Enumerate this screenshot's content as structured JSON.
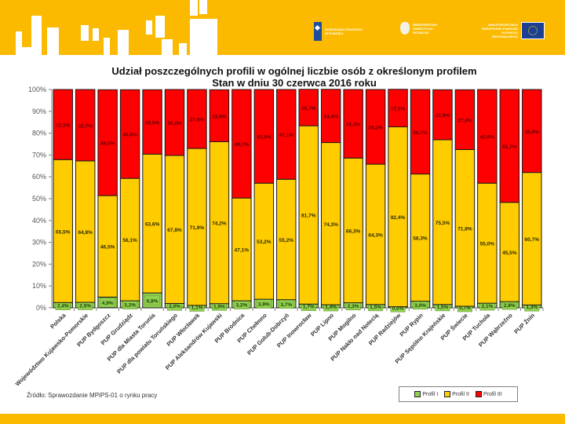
{
  "header": {
    "logos": [
      {
        "name": "nss-logo",
        "text": "NARODOWA STRATEGIA SPÓJNOŚCI"
      },
      {
        "name": "ministry-logo",
        "text": "MINISTERSTWO INWESTYCJI I ROZWOJU"
      },
      {
        "name": "eu-logo",
        "text": "UNIA EUROPEJSKA EUROPEJSKI FUNDUSZ ROZWOJU REGIONALNEGO"
      }
    ]
  },
  "colors": {
    "brand_yellow": "#fbba00",
    "profil_1": "#92d050",
    "profil_2": "#ffcc00",
    "profil_3": "#ff0000"
  },
  "source_note": "Źródło: Sprawozdanie MPiPS-01 o rynku pracy",
  "chart_data": {
    "type": "bar",
    "stacked": true,
    "title": "Udział poszczególnych profili w ogólnej liczbie osób z określonym profilem",
    "subtitle": "Stan w dniu 30 czerwca 2016 roku",
    "xlabel": "",
    "ylabel": "",
    "ylim": [
      0,
      100
    ],
    "yticks": [
      "0%",
      "10%",
      "20%",
      "30%",
      "40%",
      "50%",
      "60%",
      "70%",
      "80%",
      "90%",
      "100%"
    ],
    "grid": false,
    "legend_position": "bottom-right",
    "categories": [
      "Polska",
      "Województwo Kujawsko-Pomorskie",
      "PUP Bydgoszcz",
      "PUP Grudziądz",
      "PUP dla Miasta Torunia",
      "PUP dla powiatu Toruńskiego",
      "PUP Włocławek",
      "PUP Aleksandrów Kujawski",
      "PUP Brodnica",
      "PUP Chełmno",
      "PUP Golub-Dobrzyń",
      "PUP Inowrocław",
      "PUP Lipno",
      "PUP Mogilno",
      "PUP Nakło nad Notecią",
      "PUP Radziejów",
      "PUP Rypin",
      "PUP Sępólno Krajeńskie",
      "PUP Świecie",
      "PUP Tuchola",
      "PUP Wąbrzeźno",
      "PUP Żnin"
    ],
    "series": [
      {
        "name": "Profil I",
        "color": "#92d050",
        "values": [
          2.4,
          2.5,
          4.9,
          3.2,
          6.8,
          2.0,
          1.1,
          1.9,
          3.2,
          3.9,
          3.7,
          1.7,
          1.4,
          2.3,
          1.5,
          0.5,
          3.0,
          1.5,
          0.7,
          2.1,
          2.8,
          1.3
        ],
        "labels": [
          "2,4%",
          "2,5%",
          "4,9%",
          "3,2%",
          "6,8%",
          "2,0%",
          "1,1%",
          "1,9%",
          "3,2%",
          "3,9%",
          "3,7%",
          "1,7%",
          "1,4%",
          "2,3%",
          "1,5%",
          "0,5%",
          "3,0%",
          "1,5%",
          "0,7%",
          "2,1%",
          "2,8%",
          "1,3%"
        ]
      },
      {
        "name": "Profil II",
        "color": "#ffcc00",
        "values": [
          65.5,
          64.8,
          46.5,
          56.1,
          63.6,
          67.8,
          71.9,
          74.2,
          47.1,
          53.2,
          55.2,
          81.7,
          74.3,
          66.3,
          64.3,
          82.4,
          58.3,
          75.5,
          71.8,
          55.0,
          45.5,
          60.7
        ],
        "labels": [
          "65,5%",
          "64,8%",
          "46,5%",
          "56,1%",
          "63,6%",
          "67,8%",
          "71,9%",
          "74,2%",
          "47,1%",
          "53,2%",
          "55,2%",
          "81,7%",
          "74,3%",
          "66,3%",
          "64,3%",
          "82,4%",
          "58,3%",
          "75,5%",
          "71,8%",
          "55,0%",
          "45,5%",
          "60,7%"
        ]
      },
      {
        "name": "Profil III",
        "color": "#ff0000",
        "values": [
          32.1,
          32.7,
          48.5,
          40.6,
          29.5,
          30.2,
          27.0,
          23.8,
          49.7,
          42.9,
          41.1,
          16.7,
          24.4,
          31.4,
          34.2,
          17.2,
          38.7,
          22.9,
          27.4,
          42.9,
          51.7,
          38.0
        ],
        "labels": [
          "32,1%",
          "32,7%",
          "48,5%",
          "40,6%",
          "29,5%",
          "30,2%",
          "27,0%",
          "23,8%",
          "49,7%",
          "42,9%",
          "41,1%",
          "16,7%",
          "24,4%",
          "31,4%",
          "34,2%",
          "17,2%",
          "38,7%",
          "22,9%",
          "27,4%",
          "42,9%",
          "51,7%",
          "38,0%"
        ]
      }
    ]
  }
}
